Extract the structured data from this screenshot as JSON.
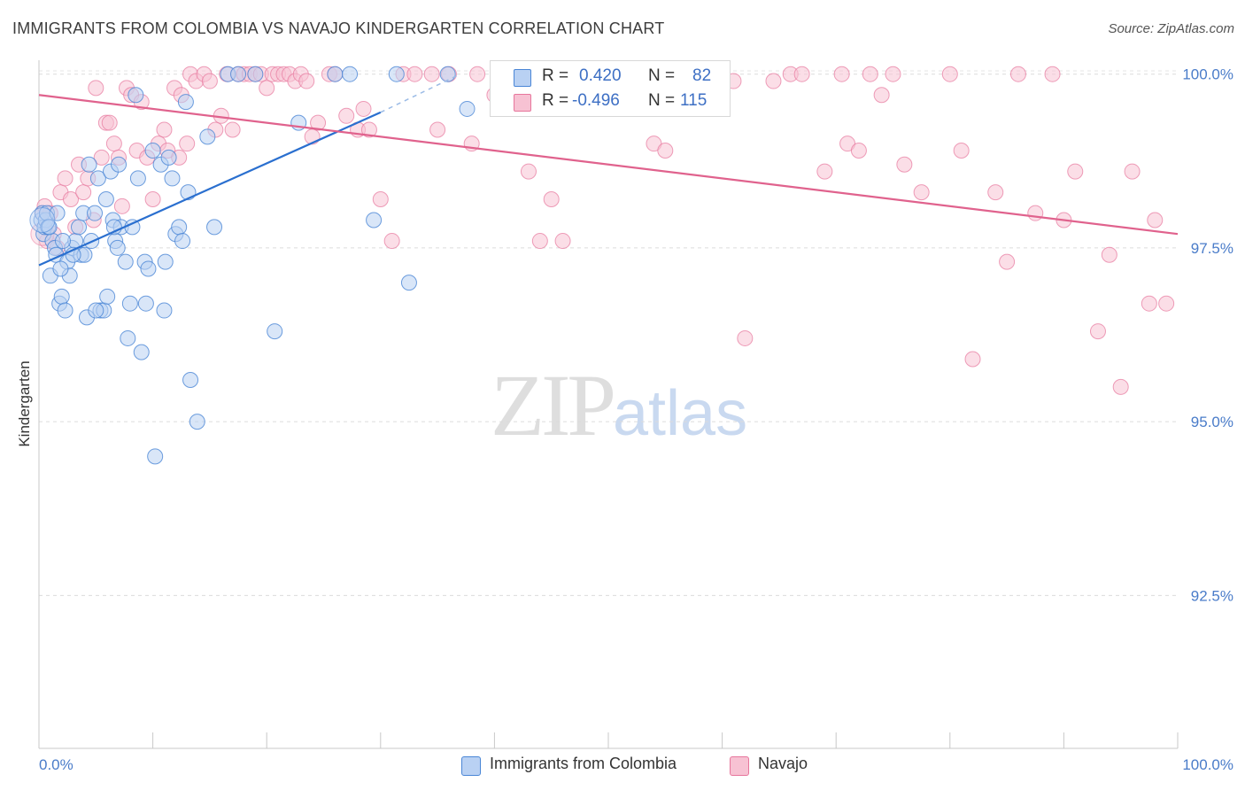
{
  "title": "IMMIGRANTS FROM COLOMBIA VS NAVAJO KINDERGARTEN CORRELATION CHART",
  "source": "Source: ZipAtlas.com",
  "watermark": {
    "zip": "ZIP",
    "atlas": "atlas"
  },
  "colors": {
    "blue": "#4a86d6",
    "blue_fill": "#b9d1f3",
    "pink": "#e7769c",
    "pink_fill": "#f7c2d3",
    "axis_text": "#4a7cc9"
  },
  "stats": {
    "rows": [
      {
        "r_label": "R =",
        "r_value": "0.420",
        "n_label": "N =",
        "n_value": "82"
      },
      {
        "r_label": "R =",
        "r_value": "-0.496",
        "n_label": "N =",
        "n_value": "115"
      }
    ]
  },
  "legend": {
    "items": [
      "Immigrants from Colombia",
      "Navajo"
    ]
  },
  "chart_data": {
    "type": "scatter",
    "xlabel": "",
    "ylabel": "Kindergarten",
    "x_tick_labels": [
      "0.0%",
      "100.0%"
    ],
    "y_tick_labels": [
      "100.0%",
      "97.5%",
      "95.0%",
      "92.5%"
    ],
    "y_ticks": [
      100.0,
      97.5,
      95.0,
      92.5
    ],
    "xlim": [
      0,
      100
    ],
    "ylim": [
      90.3,
      100.2
    ],
    "grid": true,
    "legend_position": "bottom-center",
    "series": [
      {
        "name": "Immigrants from Colombia",
        "trend": {
          "x0": 0,
          "y0": 97.25,
          "x1": 30,
          "y1": 99.45,
          "dashed_to_x": 37,
          "dashed_to_y": 100.0
        },
        "points": [
          [
            0.2,
            97.9
          ],
          [
            0.3,
            98.0
          ],
          [
            0.4,
            97.7
          ],
          [
            0.5,
            97.8
          ],
          [
            0.6,
            97.9
          ],
          [
            0.7,
            98.0
          ],
          [
            0.8,
            97.8
          ],
          [
            1.0,
            97.1
          ],
          [
            1.2,
            97.6
          ],
          [
            1.4,
            97.5
          ],
          [
            1.5,
            97.4
          ],
          [
            1.6,
            98.0
          ],
          [
            1.8,
            96.7
          ],
          [
            2.0,
            96.8
          ],
          [
            2.3,
            96.6
          ],
          [
            2.5,
            97.3
          ],
          [
            2.7,
            97.1
          ],
          [
            2.9,
            97.5
          ],
          [
            3.2,
            97.6
          ],
          [
            3.5,
            97.8
          ],
          [
            3.7,
            97.4
          ],
          [
            3.9,
            98.0
          ],
          [
            4.0,
            97.4
          ],
          [
            4.2,
            96.5
          ],
          [
            4.4,
            98.7
          ],
          [
            4.6,
            97.6
          ],
          [
            4.9,
            98.0
          ],
          [
            5.2,
            98.5
          ],
          [
            5.4,
            96.6
          ],
          [
            5.7,
            96.6
          ],
          [
            5.9,
            98.2
          ],
          [
            6.0,
            96.8
          ],
          [
            6.3,
            98.6
          ],
          [
            6.5,
            97.9
          ],
          [
            6.7,
            97.6
          ],
          [
            6.9,
            97.5
          ],
          [
            7.0,
            98.7
          ],
          [
            7.2,
            97.8
          ],
          [
            7.6,
            97.3
          ],
          [
            7.8,
            96.2
          ],
          [
            8.2,
            97.8
          ],
          [
            8.5,
            99.7
          ],
          [
            8.7,
            98.5
          ],
          [
            9.0,
            96.0
          ],
          [
            9.3,
            97.3
          ],
          [
            9.4,
            96.7
          ],
          [
            9.6,
            97.2
          ],
          [
            10.0,
            98.9
          ],
          [
            10.2,
            94.5
          ],
          [
            10.7,
            98.7
          ],
          [
            11.0,
            96.6
          ],
          [
            11.4,
            98.8
          ],
          [
            11.7,
            98.5
          ],
          [
            12.0,
            97.7
          ],
          [
            12.3,
            97.8
          ],
          [
            12.6,
            97.6
          ],
          [
            12.9,
            99.6
          ],
          [
            13.1,
            98.3
          ],
          [
            13.3,
            95.6
          ],
          [
            13.9,
            95.0
          ],
          [
            14.8,
            99.1
          ],
          [
            15.4,
            97.8
          ],
          [
            16.6,
            100.0
          ],
          [
            17.5,
            100.0
          ],
          [
            19.0,
            100.0
          ],
          [
            20.7,
            96.3
          ],
          [
            22.8,
            99.3
          ],
          [
            26.0,
            100.0
          ],
          [
            27.3,
            100.0
          ],
          [
            29.4,
            97.9
          ],
          [
            31.4,
            100.0
          ],
          [
            32.5,
            97.0
          ],
          [
            35.9,
            100.0
          ],
          [
            37.6,
            99.5
          ],
          [
            2.1,
            97.6
          ],
          [
            3.0,
            97.4
          ],
          [
            1.9,
            97.2
          ],
          [
            0.9,
            97.8
          ],
          [
            5.0,
            96.6
          ],
          [
            8.0,
            96.7
          ],
          [
            11.1,
            97.3
          ],
          [
            6.6,
            97.8
          ]
        ]
      },
      {
        "name": "Navajo",
        "trend": {
          "x0": 0,
          "y0": 99.7,
          "x1": 100,
          "y1": 97.7
        },
        "points": [
          [
            0.3,
            98.0
          ],
          [
            0.5,
            98.1
          ],
          [
            0.7,
            97.6
          ],
          [
            1.0,
            98.0
          ],
          [
            1.3,
            97.7
          ],
          [
            1.6,
            97.5
          ],
          [
            1.9,
            98.3
          ],
          [
            2.3,
            98.5
          ],
          [
            2.8,
            98.2
          ],
          [
            3.2,
            97.8
          ],
          [
            3.5,
            98.7
          ],
          [
            3.9,
            98.3
          ],
          [
            4.3,
            98.5
          ],
          [
            4.8,
            97.9
          ],
          [
            5.0,
            99.8
          ],
          [
            5.5,
            98.8
          ],
          [
            5.9,
            99.3
          ],
          [
            6.2,
            99.3
          ],
          [
            6.6,
            99.0
          ],
          [
            7.0,
            98.8
          ],
          [
            7.3,
            98.1
          ],
          [
            7.7,
            99.8
          ],
          [
            8.1,
            99.7
          ],
          [
            8.6,
            98.9
          ],
          [
            9.0,
            99.6
          ],
          [
            9.5,
            98.8
          ],
          [
            10.0,
            98.2
          ],
          [
            10.5,
            99.0
          ],
          [
            11.0,
            99.2
          ],
          [
            11.3,
            98.9
          ],
          [
            11.9,
            99.8
          ],
          [
            12.3,
            98.8
          ],
          [
            12.5,
            99.7
          ],
          [
            13.0,
            99.0
          ],
          [
            13.3,
            100.0
          ],
          [
            13.8,
            99.9
          ],
          [
            14.5,
            100.0
          ],
          [
            15.0,
            99.9
          ],
          [
            15.5,
            99.2
          ],
          [
            16.0,
            99.4
          ],
          [
            16.5,
            100.0
          ],
          [
            17.0,
            99.2
          ],
          [
            17.5,
            100.0
          ],
          [
            18.0,
            100.0
          ],
          [
            18.5,
            100.0
          ],
          [
            19.0,
            100.0
          ],
          [
            19.5,
            100.0
          ],
          [
            20.0,
            99.8
          ],
          [
            20.5,
            100.0
          ],
          [
            21.0,
            100.0
          ],
          [
            21.5,
            100.0
          ],
          [
            22.0,
            100.0
          ],
          [
            22.5,
            99.9
          ],
          [
            23.0,
            100.0
          ],
          [
            23.5,
            99.9
          ],
          [
            24.0,
            99.1
          ],
          [
            24.5,
            99.3
          ],
          [
            25.5,
            100.0
          ],
          [
            26.0,
            100.0
          ],
          [
            27.0,
            99.4
          ],
          [
            28.0,
            99.2
          ],
          [
            28.5,
            99.5
          ],
          [
            29.0,
            99.2
          ],
          [
            30.0,
            98.2
          ],
          [
            31.0,
            97.6
          ],
          [
            32.0,
            100.0
          ],
          [
            33.0,
            100.0
          ],
          [
            34.5,
            100.0
          ],
          [
            35.0,
            99.2
          ],
          [
            36.0,
            100.0
          ],
          [
            38.0,
            99.0
          ],
          [
            38.5,
            100.0
          ],
          [
            40.0,
            99.7
          ],
          [
            41.0,
            100.0
          ],
          [
            42.0,
            99.8
          ],
          [
            42.5,
            100.0
          ],
          [
            43.0,
            98.6
          ],
          [
            44.0,
            97.6
          ],
          [
            45.0,
            98.2
          ],
          [
            46.0,
            97.6
          ],
          [
            48.0,
            100.0
          ],
          [
            49.0,
            100.0
          ],
          [
            50.0,
            99.9
          ],
          [
            51.0,
            100.0
          ],
          [
            52.5,
            100.0
          ],
          [
            54.0,
            99.0
          ],
          [
            55.0,
            98.9
          ],
          [
            58.0,
            100.0
          ],
          [
            60.0,
            100.0
          ],
          [
            61.0,
            99.9
          ],
          [
            62.0,
            96.2
          ],
          [
            64.5,
            99.9
          ],
          [
            66.0,
            100.0
          ],
          [
            67.0,
            100.0
          ],
          [
            69.0,
            98.6
          ],
          [
            70.5,
            100.0
          ],
          [
            71.0,
            99.0
          ],
          [
            72.0,
            98.9
          ],
          [
            73.0,
            100.0
          ],
          [
            74.0,
            99.7
          ],
          [
            75.0,
            100.0
          ],
          [
            76.0,
            98.7
          ],
          [
            77.5,
            98.3
          ],
          [
            80.0,
            100.0
          ],
          [
            81.0,
            98.9
          ],
          [
            82.0,
            95.9
          ],
          [
            84.0,
            98.3
          ],
          [
            85.0,
            97.3
          ],
          [
            86.0,
            100.0
          ],
          [
            87.5,
            98.0
          ],
          [
            89.0,
            100.0
          ],
          [
            90.0,
            97.9
          ],
          [
            91.0,
            98.6
          ],
          [
            93.0,
            96.3
          ],
          [
            94.0,
            97.4
          ],
          [
            95.0,
            95.5
          ],
          [
            96.0,
            98.6
          ],
          [
            97.5,
            96.7
          ],
          [
            98.0,
            97.9
          ],
          [
            99.0,
            96.7
          ]
        ]
      }
    ]
  }
}
